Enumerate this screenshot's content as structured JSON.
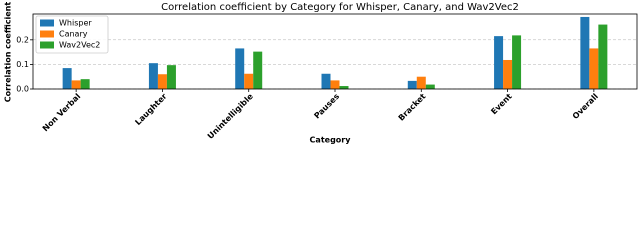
{
  "chart_data": {
    "type": "bar",
    "title": "Correlation coefficient by Category for Whisper, Canary, and Wav2Vec2",
    "x_label": "Category",
    "y_label": "Correlation coefficient",
    "categories": [
      "Non Verbal",
      "Laughter",
      "Unintelligible",
      "Pauses",
      "Bracket",
      "Event",
      "Overall"
    ],
    "series": [
      {
        "name": "Whisper",
        "color": "#1f77b4",
        "values": [
          0.085,
          0.105,
          0.165,
          0.062,
          0.033,
          0.215,
          0.293
        ]
      },
      {
        "name": "Canary",
        "color": "#ff7f0e",
        "values": [
          0.035,
          0.06,
          0.062,
          0.035,
          0.05,
          0.118,
          0.165
        ]
      },
      {
        "name": "Wav2Vec2",
        "color": "#2ca02c",
        "values": [
          0.04,
          0.097,
          0.152,
          0.012,
          0.018,
          0.218,
          0.262
        ]
      }
    ],
    "ylim": [
      0,
      0.305
    ],
    "yticks": [
      {
        "value": 0,
        "label": "0.0"
      },
      0.1,
      0.2
    ],
    "grid": true,
    "legend": "upper left"
  }
}
